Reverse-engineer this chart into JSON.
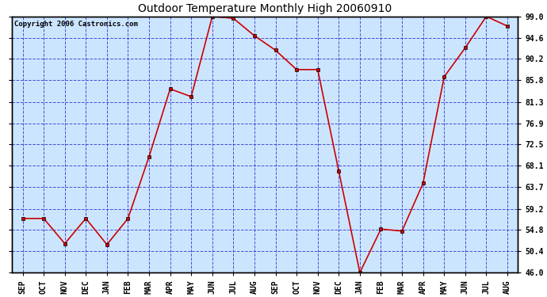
{
  "title": "Outdoor Temperature Monthly High 20060910",
  "copyright": "Copyright 2006 Castronics.com",
  "x_labels": [
    "SEP",
    "OCT",
    "NOV",
    "DEC",
    "JAN",
    "FEB",
    "MAR",
    "APR",
    "MAY",
    "JUN",
    "JUL",
    "AUG",
    "SEP",
    "OCT",
    "NOV",
    "DEC",
    "JAN",
    "FEB",
    "MAR",
    "APR",
    "MAY",
    "JUN",
    "JUL",
    "AUG"
  ],
  "y_values": [
    57.2,
    57.2,
    52.0,
    57.2,
    51.8,
    57.2,
    70.0,
    84.0,
    82.4,
    99.0,
    98.6,
    95.0,
    92.0,
    88.0,
    88.0,
    67.0,
    46.0,
    55.0,
    54.6,
    64.5,
    86.5,
    92.5,
    99.0,
    97.0
  ],
  "line_color": "#cc0000",
  "marker_color": "#000000",
  "marker_fill": "#cc0000",
  "plot_bg": "#cce5ff",
  "grid_color": "#3333cc",
  "title_color": "#000000",
  "copyright_color": "#000000",
  "y_min": 46.0,
  "y_max": 99.0,
  "y_ticks": [
    46.0,
    50.4,
    54.8,
    59.2,
    63.7,
    68.1,
    72.5,
    76.9,
    81.3,
    85.8,
    90.2,
    94.6,
    99.0
  ],
  "title_fontsize": 10,
  "tick_fontsize": 7,
  "copyright_fontsize": 6.5
}
